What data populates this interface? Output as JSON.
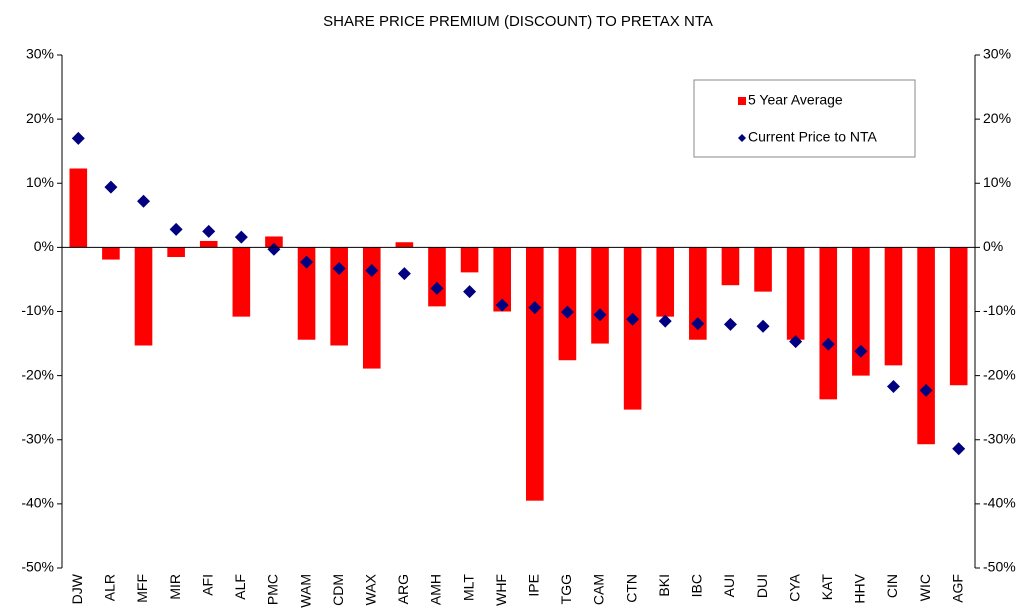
{
  "chart_data": {
    "type": "bar",
    "title": "SHARE PRICE PREMIUM (DISCOUNT) TO PRETAX NTA",
    "categories": [
      "DJW",
      "ALR",
      "MFF",
      "MIR",
      "AFI",
      "ALF",
      "PMC",
      "WAM",
      "CDM",
      "WAX",
      "ARG",
      "AMH",
      "MLT",
      "WHF",
      "IPE",
      "TGG",
      "CAM",
      "CTN",
      "BKI",
      "IBC",
      "AUI",
      "DUI",
      "CYA",
      "KAT",
      "HHV",
      "CIN",
      "WIC",
      "AGF"
    ],
    "series": [
      {
        "name": "5 Year Average",
        "type": "bar",
        "color": "#ff0000",
        "values": [
          12.3,
          -1.9,
          -15.3,
          -1.5,
          1.0,
          -10.8,
          1.7,
          -14.4,
          -15.3,
          -18.9,
          0.8,
          -9.2,
          -3.9,
          -10.0,
          -39.5,
          -17.6,
          -15.0,
          -25.3,
          -10.8,
          -14.4,
          -5.9,
          -6.9,
          -14.4,
          -23.7,
          -20.0,
          -18.4,
          -30.7,
          -21.5
        ]
      },
      {
        "name": "Current Price to NTA",
        "type": "scatter",
        "color": "#000080",
        "values": [
          17.0,
          9.4,
          7.2,
          2.8,
          2.5,
          1.6,
          -0.3,
          -2.3,
          -3.3,
          -3.6,
          -4.1,
          -6.4,
          -6.9,
          -9.0,
          -9.4,
          -10.1,
          -10.5,
          -11.2,
          -11.5,
          -11.9,
          -12.0,
          -12.3,
          -14.7,
          -15.1,
          -16.2,
          -21.7,
          -22.3,
          -31.4
        ]
      }
    ],
    "ylim": [
      -50,
      30
    ],
    "yticks": [
      {
        "value": -50,
        "label": "-50%"
      },
      {
        "value": -40,
        "label": "-40%"
      },
      {
        "value": -30,
        "label": "-30%"
      },
      {
        "value": -20,
        "label": "-20%"
      },
      {
        "value": -10,
        "label": "-10%"
      },
      {
        "value": 0,
        "label": "0%"
      },
      {
        "value": 10,
        "label": "10%"
      },
      {
        "value": 20,
        "label": "20%"
      },
      {
        "value": 30,
        "label": "30%"
      }
    ],
    "legend": "upper right",
    "grid": false
  }
}
